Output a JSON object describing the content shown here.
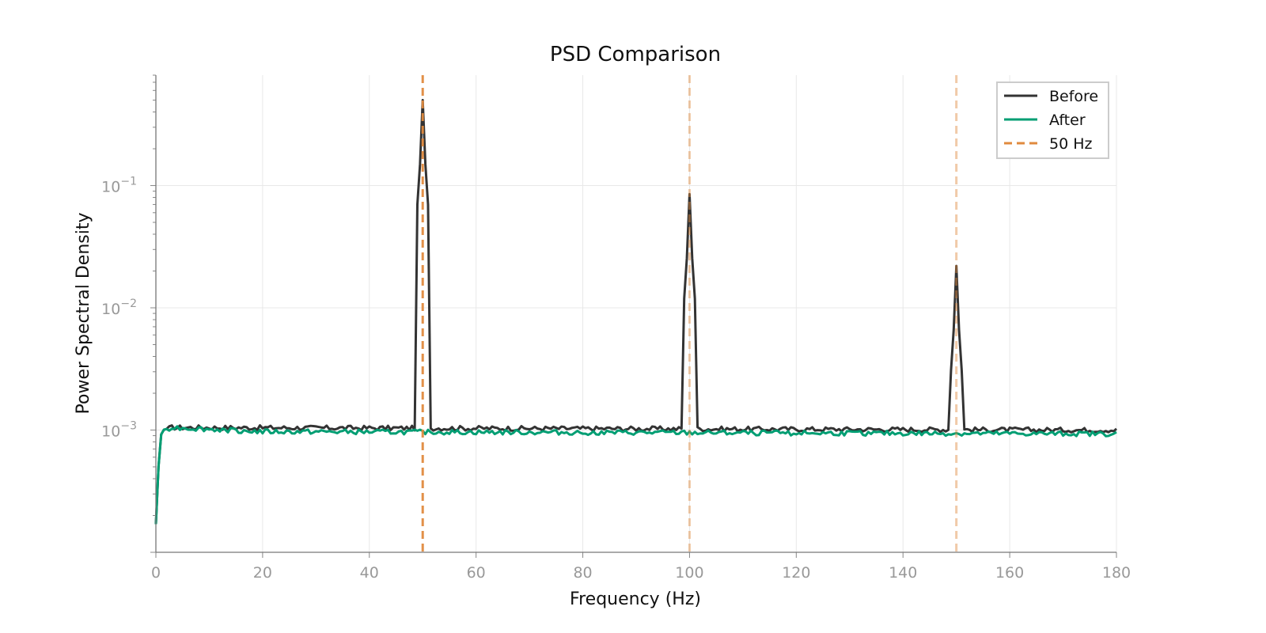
{
  "chart_data": {
    "type": "line",
    "title": "PSD Comparison",
    "xlabel": "Frequency (Hz)",
    "ylabel": "Power Spectral Density",
    "xlim": [
      0,
      180
    ],
    "ylim": [
      0.0001,
      0.8
    ],
    "yscale": "log",
    "grid": true,
    "legend_position": "top-right",
    "x_ticks": [
      0,
      20,
      40,
      60,
      80,
      100,
      120,
      140,
      160,
      180
    ],
    "y_major_ticks": [
      {
        "value": 0.001,
        "base": "10",
        "exp": "−3"
      },
      {
        "value": 0.01,
        "base": "10",
        "exp": "−2"
      },
      {
        "value": 0.1,
        "base": "10",
        "exp": "−1"
      }
    ],
    "series": [
      {
        "name": "Before",
        "color": "#333333",
        "baseline_points": [
          [
            0,
            0.00017
          ],
          [
            0.3,
            0.0003
          ],
          [
            0.7,
            0.00085
          ],
          [
            1.3,
            0.001
          ],
          [
            3,
            0.00105
          ],
          [
            180,
            0.001
          ]
        ],
        "peaks": [
          {
            "center": 50,
            "peak": 0.5
          },
          {
            "center": 100,
            "peak": 0.085
          },
          {
            "center": 150,
            "peak": 0.022
          }
        ]
      },
      {
        "name": "After",
        "color": "#009E73",
        "baseline_points": [
          [
            0,
            0.00017
          ],
          [
            0.3,
            0.0003
          ],
          [
            0.7,
            0.00085
          ],
          [
            1.3,
            0.001
          ],
          [
            3,
            0.00105
          ],
          [
            20,
            0.00097
          ],
          [
            180,
            0.00093
          ]
        ],
        "peaks": []
      }
    ],
    "reference_lines": [
      {
        "name": "50 Hz",
        "x": 50,
        "color": "#E08A3E",
        "opacity": 0.95
      },
      {
        "x": 100,
        "color": "#E08A3E",
        "opacity": 0.45
      },
      {
        "x": 150,
        "color": "#E08A3E",
        "opacity": 0.45
      }
    ]
  }
}
